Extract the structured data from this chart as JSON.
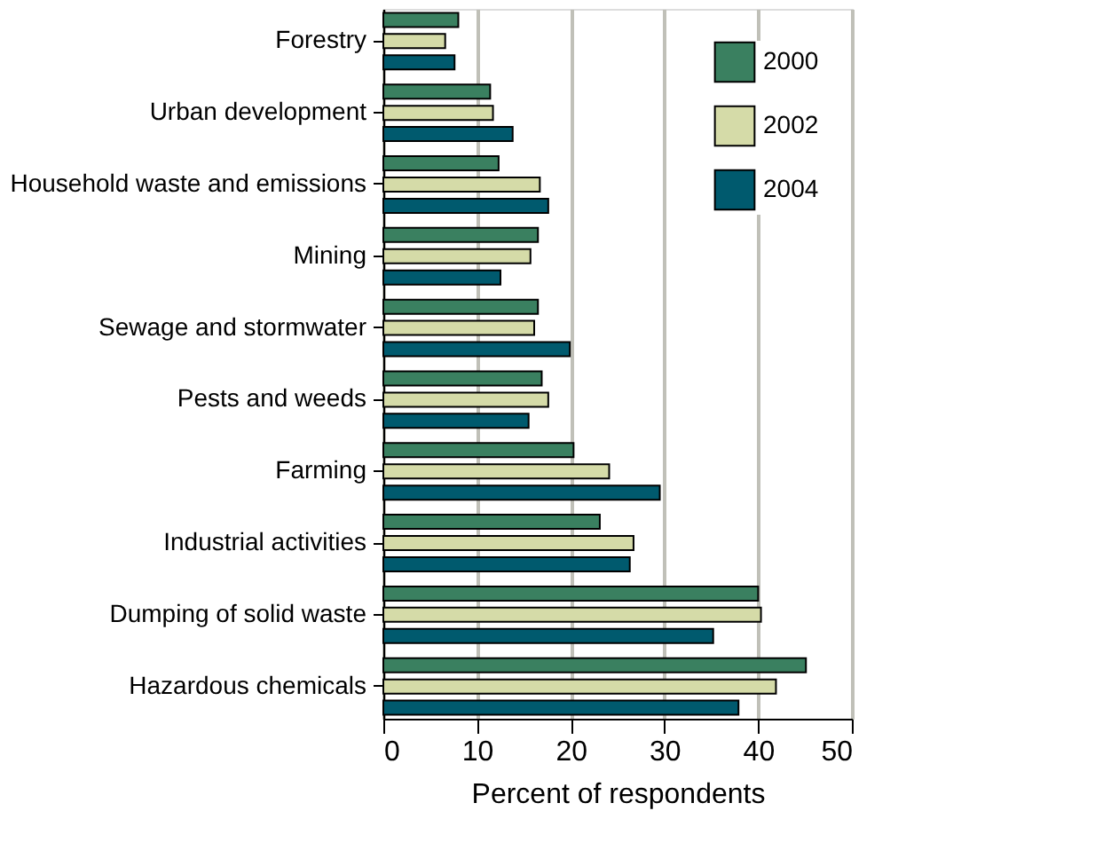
{
  "chart_data": {
    "type": "bar",
    "orientation": "horizontal",
    "xlabel": "Percent of respondents",
    "categories": [
      "Forestry",
      "Urban development",
      "Household waste and emissions",
      "Mining",
      "Sewage and stormwater",
      "Pests and weeds",
      "Farming",
      "Industrial activities",
      "Dumping of solid waste",
      "Hazardous chemicals"
    ],
    "series": [
      {
        "name": "2000",
        "color": "#3a8060",
        "values": [
          8.0,
          11.4,
          12.3,
          16.5,
          16.5,
          16.9,
          20.3,
          23.1,
          40.0,
          45.1
        ]
      },
      {
        "name": "2002",
        "color": "#d5dba8",
        "values": [
          6.6,
          11.7,
          16.7,
          15.7,
          16.1,
          17.6,
          24.1,
          26.7,
          40.3,
          41.9
        ]
      },
      {
        "name": "2004",
        "color": "#005a6e",
        "values": [
          7.6,
          13.8,
          17.6,
          12.5,
          19.9,
          15.5,
          29.5,
          26.3,
          35.2,
          37.9
        ]
      }
    ],
    "xlim": [
      0,
      50
    ],
    "xticks": [
      0,
      10,
      20,
      30,
      40,
      50
    ],
    "grid": "x",
    "legend": "top right"
  }
}
